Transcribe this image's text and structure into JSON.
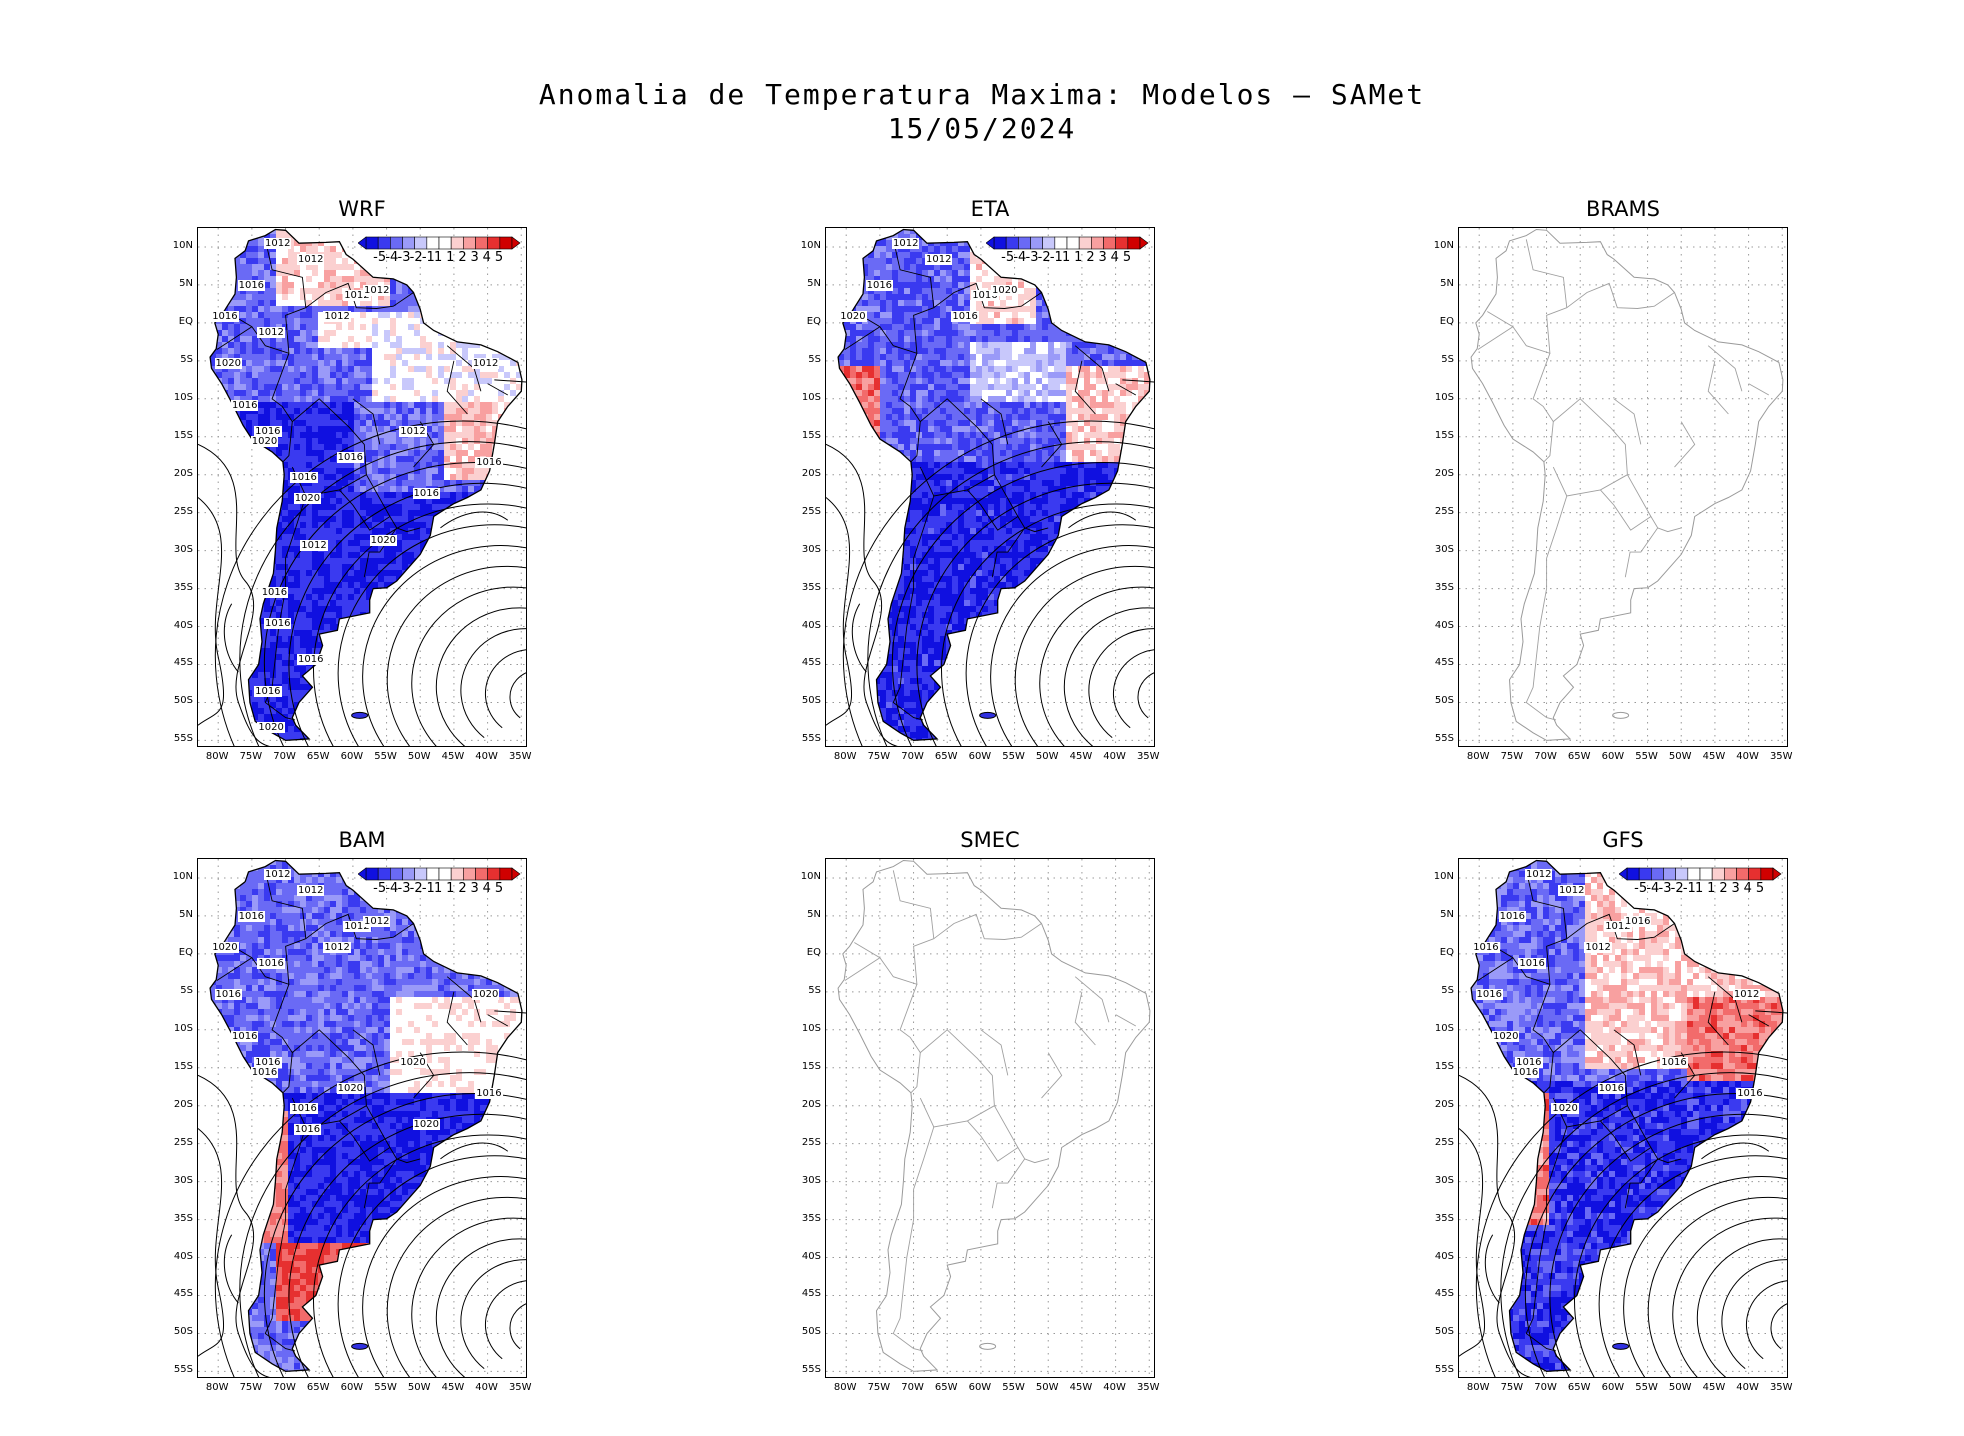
{
  "title": {
    "line1": "Anomalia de Temperatura Maxima: Modelos — SAMet",
    "line2": "15/05/2024"
  },
  "axes": {
    "lat_labels": [
      "10N",
      "5N",
      "EQ",
      "5S",
      "10S",
      "15S",
      "20S",
      "25S",
      "30S",
      "35S",
      "40S",
      "45S",
      "50S",
      "55S"
    ],
    "lon_labels": [
      "80W",
      "75W",
      "70W",
      "65W",
      "60W",
      "55W",
      "50W",
      "45W",
      "40W",
      "35W"
    ]
  },
  "colorbar": {
    "labels": [
      "-5",
      "-4",
      "-3",
      "-2",
      "-1",
      "1",
      "1",
      "2",
      "3",
      "4",
      "5"
    ],
    "colors": [
      "#1010e0",
      "#3a3af0",
      "#6a6af5",
      "#9a9af8",
      "#c8c8fb",
      "#ffffff",
      "#ffffff",
      "#fbd0d0",
      "#f8a0a0",
      "#f26b6b",
      "#e63030",
      "#d00000"
    ]
  },
  "panels": [
    {
      "name": "WRF",
      "has_data": true,
      "isobars": [
        "1012",
        "1012",
        "1016",
        "1012",
        "1012",
        "1012",
        "1016",
        "1012",
        "1020",
        "1016",
        "1016",
        "1020",
        "1012",
        "1012",
        "1016",
        "1016",
        "1016",
        "1020",
        "1016",
        "1012",
        "1020",
        "1016",
        "1016",
        "1016",
        "1016",
        "1020"
      ]
    },
    {
      "name": "ETA",
      "has_data": true,
      "isobars": [
        "1012",
        "1012",
        "1016",
        "1016",
        "1020",
        "1016",
        "1020"
      ]
    },
    {
      "name": "BRAMS",
      "has_data": false,
      "isobars": []
    },
    {
      "name": "BAM",
      "has_data": true,
      "isobars": [
        "1012",
        "1012",
        "1016",
        "1012",
        "1012",
        "1012",
        "1020",
        "1016",
        "1016",
        "1016",
        "1016",
        "1016",
        "1020",
        "1020",
        "1020",
        "1016",
        "1016",
        "1016",
        "1020"
      ]
    },
    {
      "name": "SMEC",
      "has_data": false,
      "isobars": []
    },
    {
      "name": "GFS",
      "has_data": true,
      "isobars": [
        "1012",
        "1012",
        "1016",
        "1012",
        "1016",
        "1012",
        "1016",
        "1016",
        "1016",
        "1020",
        "1016",
        "1016",
        "1012",
        "1016",
        "1016",
        "1016",
        "1020"
      ]
    }
  ]
}
